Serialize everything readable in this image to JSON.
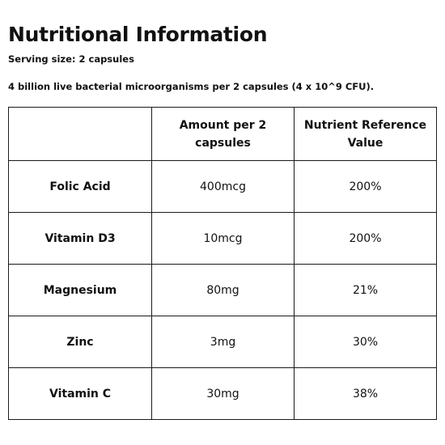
{
  "title": "Nutritional Information",
  "serving_size": "Serving size: 2 capsules",
  "note": "4 billion live bacterial microorganisms per 2 capsules (4 x 10^9 CFU).",
  "table": {
    "headers": [
      "",
      "Amount per 2 capsules",
      "Nutrient Reference Value"
    ],
    "rows": [
      {
        "nutrient": "Folic Acid",
        "amount": "400mcg",
        "nrv": "200%"
      },
      {
        "nutrient": "Vitamin D3",
        "amount": "10mcg",
        "nrv": "200%"
      },
      {
        "nutrient": "Magnesium",
        "amount": "80mg",
        "nrv": "21%"
      },
      {
        "nutrient": "Zinc",
        "amount": "3mg",
        "nrv": "30%"
      },
      {
        "nutrient": "Vitamin C",
        "amount": "30mg",
        "nrv": "38%"
      }
    ]
  }
}
